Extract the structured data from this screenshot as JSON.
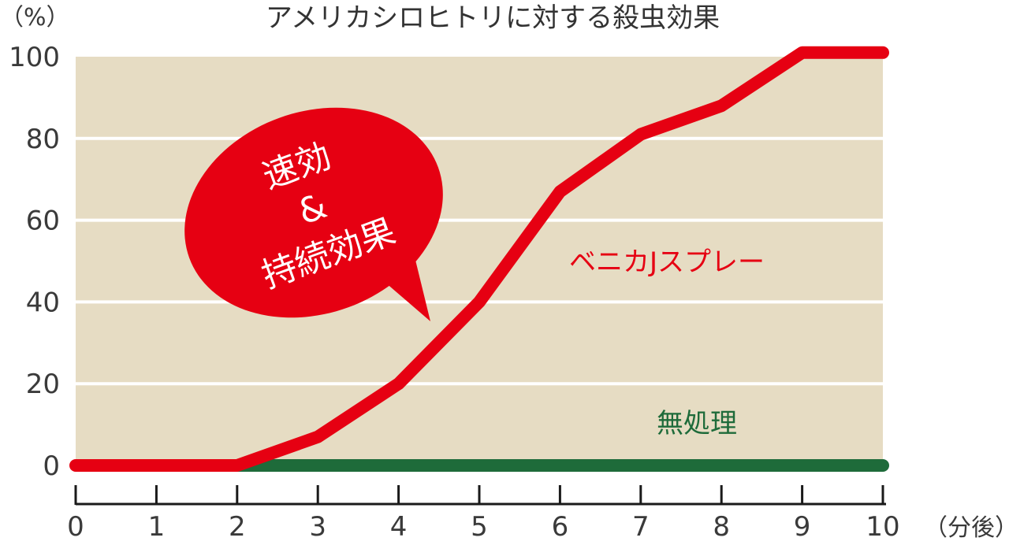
{
  "chart_data": {
    "type": "line",
    "title": "アメリカシロヒトリに対する殺虫効果",
    "y_unit": "（%）",
    "x_unit": "（分後）",
    "xlim": [
      0,
      10
    ],
    "ylim": [
      0,
      100
    ],
    "x_ticks": [
      "0",
      "1",
      "2",
      "3",
      "4",
      "5",
      "6",
      "7",
      "8",
      "9",
      "10"
    ],
    "y_ticks": [
      "0",
      "20",
      "40",
      "60",
      "80",
      "100"
    ],
    "grid": true,
    "series": [
      {
        "name": "ベニカJスプレー",
        "color": "#e60012",
        "points": [
          [
            0,
            0
          ],
          [
            2,
            0
          ],
          [
            3,
            7
          ],
          [
            4,
            20
          ],
          [
            5,
            40
          ],
          [
            6,
            67
          ],
          [
            7,
            81
          ],
          [
            8,
            88
          ],
          [
            9,
            101
          ],
          [
            10,
            101
          ]
        ]
      },
      {
        "name": "無処理",
        "color": "#1e6b3a",
        "points": [
          [
            2,
            0
          ],
          [
            10,
            0
          ]
        ]
      }
    ],
    "annotation": {
      "lines": [
        "速効",
        "&",
        "持続効果"
      ],
      "color": "#e60012"
    },
    "plot_background": "#e6dcc3"
  }
}
